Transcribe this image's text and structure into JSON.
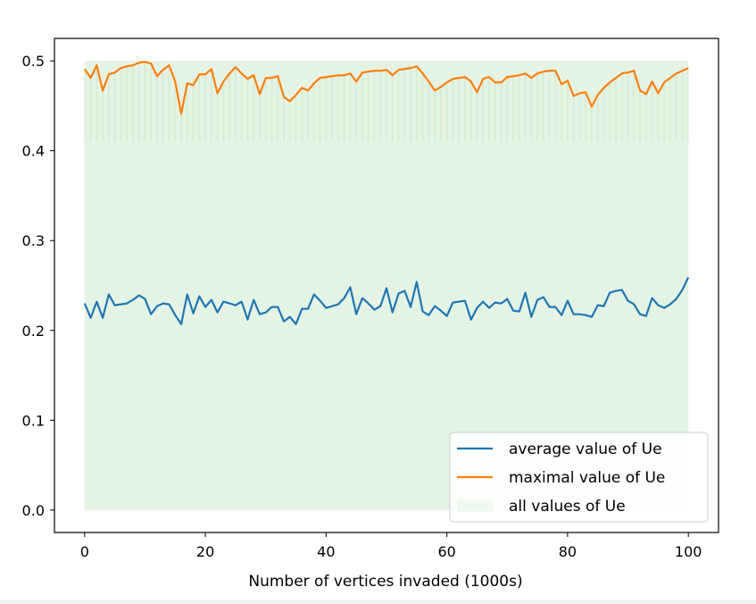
{
  "chart_data": {
    "type": "line",
    "xlabel": "Number of vertices invaded (1000s)",
    "ylabel": "",
    "xlim": [
      -5,
      105
    ],
    "ylim": [
      -0.025,
      0.525
    ],
    "x_ticks": [
      "0",
      "20",
      "40",
      "60",
      "80",
      "100"
    ],
    "y_ticks": [
      "0.0",
      "0.1",
      "0.2",
      "0.3",
      "0.4",
      "0.5"
    ],
    "grid": false,
    "legend_position": "lower right",
    "x": [
      0,
      1,
      2,
      3,
      4,
      5,
      6,
      7,
      8,
      9,
      10,
      11,
      12,
      13,
      14,
      15,
      16,
      17,
      18,
      19,
      20,
      21,
      22,
      23,
      24,
      25,
      26,
      27,
      28,
      29,
      30,
      31,
      32,
      33,
      34,
      35,
      36,
      37,
      38,
      39,
      40,
      41,
      42,
      43,
      44,
      45,
      46,
      47,
      48,
      49,
      50,
      51,
      52,
      53,
      54,
      55,
      56,
      57,
      58,
      59,
      60,
      61,
      62,
      63,
      64,
      65,
      66,
      67,
      68,
      69,
      70,
      71,
      72,
      73,
      74,
      75,
      76,
      77,
      78,
      79,
      80,
      81,
      82,
      83,
      84,
      85,
      86,
      87,
      88,
      89,
      90,
      91,
      92,
      93,
      94,
      95,
      96,
      97,
      98,
      99,
      100
    ],
    "series": [
      {
        "name": "average value of Ue",
        "color": "#1f77b4",
        "values": [
          0.23,
          0.214,
          0.232,
          0.214,
          0.24,
          0.228,
          0.229,
          0.23,
          0.234,
          0.239,
          0.235,
          0.218,
          0.227,
          0.23,
          0.229,
          0.217,
          0.207,
          0.24,
          0.219,
          0.238,
          0.226,
          0.234,
          0.22,
          0.232,
          0.23,
          0.228,
          0.232,
          0.212,
          0.234,
          0.218,
          0.22,
          0.226,
          0.226,
          0.21,
          0.215,
          0.207,
          0.224,
          0.224,
          0.24,
          0.233,
          0.225,
          0.227,
          0.229,
          0.236,
          0.248,
          0.218,
          0.236,
          0.23,
          0.223,
          0.227,
          0.247,
          0.22,
          0.241,
          0.244,
          0.226,
          0.254,
          0.221,
          0.217,
          0.227,
          0.222,
          0.216,
          0.231,
          0.232,
          0.233,
          0.212,
          0.225,
          0.232,
          0.225,
          0.231,
          0.23,
          0.235,
          0.222,
          0.221,
          0.242,
          0.215,
          0.234,
          0.237,
          0.226,
          0.226,
          0.217,
          0.233,
          0.218,
          0.218,
          0.217,
          0.215,
          0.228,
          0.227,
          0.242,
          0.244,
          0.245,
          0.233,
          0.229,
          0.218,
          0.216,
          0.236,
          0.228,
          0.225,
          0.229,
          0.235,
          0.245,
          0.259
        ]
      },
      {
        "name": "maximal value of Ue",
        "color": "#ff7f0e",
        "values": [
          0.491,
          0.481,
          0.495,
          0.467,
          0.485,
          0.487,
          0.492,
          0.494,
          0.495,
          0.498,
          0.499,
          0.497,
          0.483,
          0.49,
          0.495,
          0.477,
          0.441,
          0.475,
          0.473,
          0.485,
          0.485,
          0.491,
          0.464,
          0.477,
          0.486,
          0.493,
          0.486,
          0.48,
          0.484,
          0.463,
          0.481,
          0.481,
          0.483,
          0.46,
          0.455,
          0.462,
          0.47,
          0.467,
          0.475,
          0.481,
          0.482,
          0.483,
          0.484,
          0.484,
          0.486,
          0.477,
          0.487,
          0.488,
          0.489,
          0.489,
          0.49,
          0.484,
          0.49,
          0.491,
          0.492,
          0.494,
          0.486,
          0.477,
          0.467,
          0.471,
          0.476,
          0.48,
          0.481,
          0.482,
          0.477,
          0.465,
          0.48,
          0.482,
          0.476,
          0.476,
          0.482,
          0.483,
          0.484,
          0.486,
          0.481,
          0.486,
          0.488,
          0.489,
          0.489,
          0.474,
          0.478,
          0.461,
          0.464,
          0.465,
          0.449,
          0.462,
          0.47,
          0.476,
          0.481,
          0.486,
          0.487,
          0.489,
          0.467,
          0.463,
          0.477,
          0.464,
          0.476,
          0.481,
          0.486,
          0.489,
          0.492
        ]
      },
      {
        "name": "all values of Ue",
        "color": "#2ca02c",
        "alpha": 0.12,
        "range": [
          0.0,
          0.5
        ]
      }
    ]
  }
}
